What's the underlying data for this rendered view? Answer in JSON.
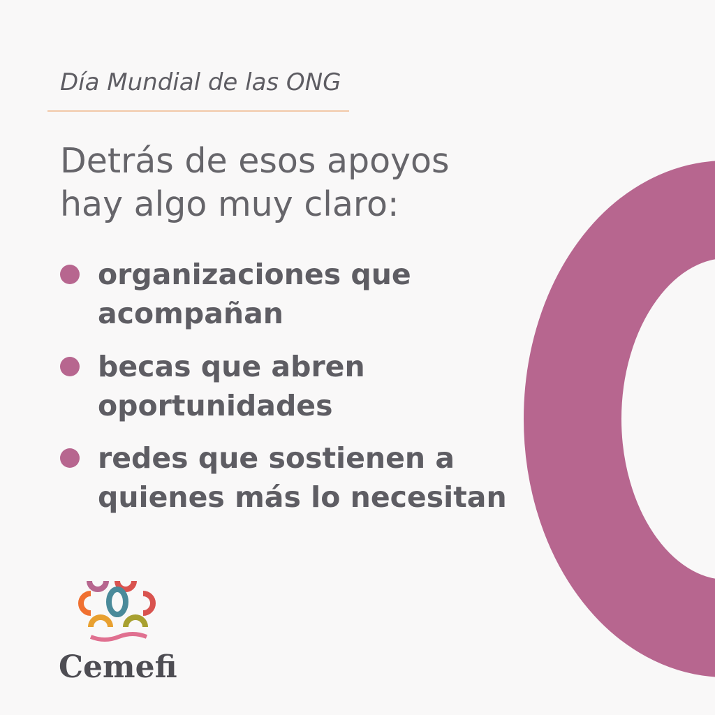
{
  "header": {
    "tag": "Día Mundial de las ONG"
  },
  "intro": {
    "lines": [
      "Detrás de esos apoyos",
      "hay algo muy claro:"
    ]
  },
  "bullets": [
    {
      "lines": [
        "organizaciones que",
        "acompañan"
      ]
    },
    {
      "lines": [
        "becas que abren",
        "oportunidades"
      ]
    },
    {
      "lines": [
        "redes que sostienen a",
        "quienes más lo necesitan"
      ]
    }
  ],
  "logo": {
    "name": "Cemefi"
  }
}
